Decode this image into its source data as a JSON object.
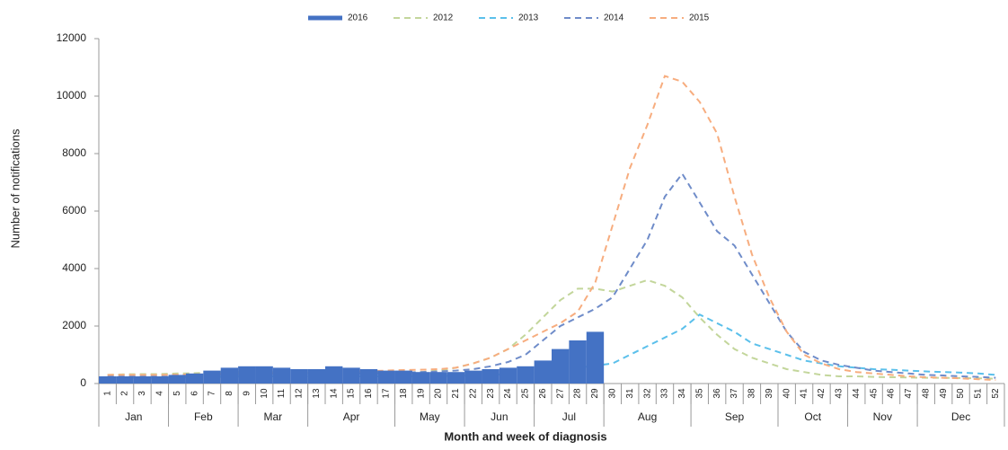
{
  "chart_data": {
    "type": "bar-line",
    "x_label": "Month and week of diagnosis",
    "y_label": "Number of notifications",
    "categories": [
      "1",
      "2",
      "3",
      "4",
      "5",
      "6",
      "7",
      "8",
      "9",
      "10",
      "11",
      "12",
      "13",
      "14",
      "15",
      "16",
      "17",
      "18",
      "19",
      "20",
      "21",
      "22",
      "23",
      "24",
      "25",
      "26",
      "27",
      "28",
      "29",
      "30",
      "31",
      "32",
      "33",
      "34",
      "35",
      "36",
      "37",
      "38",
      "39",
      "40",
      "41",
      "42",
      "43",
      "44",
      "45",
      "46",
      "47",
      "48",
      "49",
      "50",
      "51",
      "52"
    ],
    "months": [
      {
        "label": "Jan",
        "weeks": 4
      },
      {
        "label": "Feb",
        "weeks": 4
      },
      {
        "label": "Mar",
        "weeks": 4
      },
      {
        "label": "Apr",
        "weeks": 5
      },
      {
        "label": "May",
        "weeks": 4
      },
      {
        "label": "Jun",
        "weeks": 4
      },
      {
        "label": "Jul",
        "weeks": 4
      },
      {
        "label": "Aug",
        "weeks": 5
      },
      {
        "label": "Sep",
        "weeks": 5
      },
      {
        "label": "Oct",
        "weeks": 4
      },
      {
        "label": "Nov",
        "weeks": 4
      },
      {
        "label": "Dec",
        "weeks": 5
      }
    ],
    "series": [
      {
        "name": "2016",
        "kind": "bar",
        "color": "#4472c4",
        "values": [
          250,
          250,
          250,
          250,
          300,
          350,
          450,
          550,
          600,
          600,
          550,
          500,
          500,
          600,
          550,
          500,
          450,
          450,
          400,
          400,
          400,
          450,
          500,
          550,
          600,
          800,
          1200,
          1500,
          1800,
          null,
          null,
          null,
          null,
          null,
          null,
          null,
          null,
          null,
          null,
          null,
          null,
          null,
          null,
          null,
          null,
          null,
          null,
          null,
          null,
          null,
          null,
          null
        ]
      },
      {
        "name": "2012",
        "kind": "line",
        "color": "#c3d69b",
        "values": [
          300,
          320,
          330,
          330,
          350,
          360,
          380,
          400,
          400,
          400,
          380,
          380,
          380,
          400,
          400,
          380,
          380,
          380,
          400,
          450,
          550,
          700,
          900,
          1200,
          1700,
          2300,
          2900,
          3300,
          3300,
          3200,
          3400,
          3600,
          3400,
          3000,
          2300,
          1700,
          1200,
          900,
          700,
          500,
          400,
          300,
          250,
          250,
          230,
          220,
          210,
          200,
          200,
          190,
          180,
          170
        ]
      },
      {
        "name": "2013",
        "kind": "line",
        "color": "#5bc0eb",
        "values": [
          200,
          200,
          200,
          200,
          220,
          220,
          230,
          240,
          250,
          250,
          250,
          250,
          250,
          250,
          250,
          250,
          250,
          250,
          250,
          260,
          270,
          280,
          300,
          330,
          370,
          420,
          480,
          550,
          620,
          700,
          1000,
          1300,
          1600,
          1900,
          2400,
          2100,
          1800,
          1400,
          1200,
          1000,
          800,
          700,
          600,
          550,
          500,
          480,
          450,
          420,
          400,
          380,
          350,
          300
        ]
      },
      {
        "name": "2014",
        "kind": "line",
        "color": "#6f8cc9",
        "values": [
          250,
          260,
          270,
          280,
          290,
          300,
          310,
          320,
          330,
          340,
          340,
          340,
          340,
          350,
          350,
          350,
          360,
          380,
          400,
          420,
          450,
          500,
          600,
          750,
          1000,
          1500,
          2000,
          2300,
          2600,
          3000,
          4000,
          5000,
          6500,
          7300,
          6300,
          5300,
          4800,
          3800,
          2800,
          1800,
          1100,
          800,
          650,
          550,
          450,
          400,
          350,
          300,
          280,
          250,
          230,
          200
        ]
      },
      {
        "name": "2015",
        "kind": "line",
        "color": "#f7ad7f",
        "values": [
          300,
          300,
          300,
          300,
          310,
          320,
          330,
          340,
          350,
          360,
          370,
          380,
          390,
          400,
          420,
          430,
          450,
          470,
          480,
          500,
          550,
          700,
          900,
          1200,
          1500,
          1800,
          2100,
          2500,
          3500,
          5500,
          7500,
          9000,
          10700,
          10500,
          9800,
          8700,
          6500,
          4500,
          3000,
          1800,
          1000,
          700,
          500,
          400,
          350,
          300,
          250,
          220,
          200,
          180,
          150,
          120
        ]
      }
    ],
    "ylim": [
      0,
      12000
    ],
    "yticks": [
      0,
      2000,
      4000,
      6000,
      8000,
      10000,
      12000
    ],
    "grid": false
  }
}
